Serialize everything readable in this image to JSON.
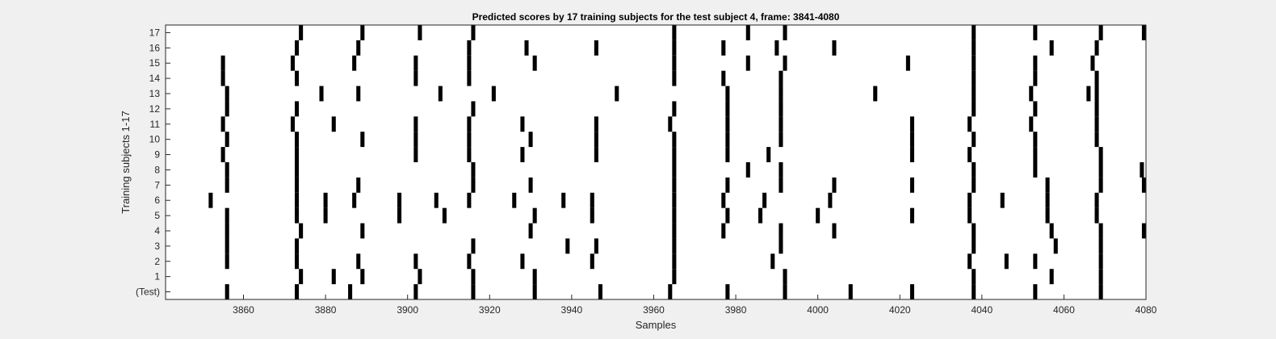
{
  "chart_data": {
    "type": "raster",
    "title": "Predicted scores by 17 training subjects for the test subject 4, frame: 3841-4080",
    "xlabel": "Samples",
    "ylabel": "Training subjects 1-17",
    "xlim": [
      3841,
      4080
    ],
    "x_ticks": [
      3860,
      3880,
      3900,
      3920,
      3940,
      3960,
      3980,
      4000,
      4020,
      4040,
      4060,
      4080
    ],
    "y_tick_labels": [
      "(Test)",
      "1",
      "2",
      "3",
      "4",
      "5",
      "6",
      "7",
      "8",
      "9",
      "10",
      "11",
      "12",
      "13",
      "14",
      "15",
      "16",
      "17"
    ],
    "grid": false,
    "legend": "none",
    "colors": {
      "background": "#f0f0f0",
      "axes": "#ffffff",
      "mark": "#000000",
      "text": "#262626"
    },
    "rows": [
      {
        "label": "(Test)",
        "x": [
          3856,
          3873,
          3886,
          3902,
          3916,
          3931,
          3947,
          3964,
          3978,
          3992,
          4008,
          4023,
          4038,
          4053,
          4069
        ]
      },
      {
        "label": "1",
        "x": [
          3874,
          3882,
          3889,
          3903,
          3916,
          3931,
          3965,
          3992,
          4038,
          4057,
          4069
        ]
      },
      {
        "label": "2",
        "x": [
          3856,
          3873,
          3888,
          3902,
          3915,
          3928,
          3945,
          3965,
          3989,
          4037,
          4046,
          4053,
          4069
        ]
      },
      {
        "label": "3",
        "x": [
          3856,
          3873,
          3916,
          3939,
          3946,
          3965,
          3991,
          4038,
          4058,
          4069
        ]
      },
      {
        "label": "4",
        "x": [
          3856,
          3874,
          3889,
          3930,
          3965,
          3977,
          3991,
          4004,
          4038,
          4057,
          4069,
          4080
        ]
      },
      {
        "label": "5",
        "x": [
          3856,
          3873,
          3880,
          3898,
          3909,
          3931,
          3945,
          3965,
          3978,
          3986,
          4000,
          4023,
          4037,
          4056,
          4068
        ]
      },
      {
        "label": "6",
        "x": [
          3852,
          3873,
          3880,
          3887,
          3898,
          3907,
          3915,
          3926,
          3938,
          3945,
          3965,
          3977,
          3987,
          4003,
          4037,
          4045,
          4056,
          4068
        ]
      },
      {
        "label": "7",
        "x": [
          3856,
          3873,
          3888,
          3916,
          3930,
          3965,
          3978,
          3991,
          4004,
          4023,
          4038,
          4056,
          4069,
          4080
        ]
      },
      {
        "label": "8",
        "x": [
          3856,
          3873,
          3916,
          3965,
          3983,
          3991,
          4038,
          4053,
          4069,
          4079
        ]
      },
      {
        "label": "9",
        "x": [
          3855,
          3873,
          3902,
          3915,
          3928,
          3946,
          3965,
          3978,
          3988,
          4023,
          4037,
          4053,
          4069
        ]
      },
      {
        "label": "10",
        "x": [
          3856,
          3873,
          3889,
          3902,
          3915,
          3930,
          3946,
          3965,
          3978,
          3991,
          4023,
          4038,
          4053,
          4068
        ]
      },
      {
        "label": "11",
        "x": [
          3855,
          3872,
          3882,
          3902,
          3915,
          3928,
          3946,
          3964,
          3978,
          3991,
          4023,
          4037,
          4052,
          4068
        ]
      },
      {
        "label": "12",
        "x": [
          3856,
          3873,
          3916,
          3965,
          3978,
          3991,
          4038,
          4053,
          4068
        ]
      },
      {
        "label": "13",
        "x": [
          3856,
          3879,
          3888,
          3908,
          3921,
          3951,
          3978,
          3991,
          4014,
          4038,
          4052,
          4066,
          4068
        ]
      },
      {
        "label": "14",
        "x": [
          3855,
          3873,
          3902,
          3915,
          3965,
          3977,
          3991,
          4038,
          4053,
          4068
        ]
      },
      {
        "label": "15",
        "x": [
          3855,
          3872,
          3887,
          3902,
          3915,
          3931,
          3965,
          3983,
          3992,
          4022,
          4038,
          4053,
          4067
        ]
      },
      {
        "label": "16",
        "x": [
          3873,
          3888,
          3915,
          3929,
          3946,
          3965,
          3977,
          3990,
          4004,
          4038,
          4057,
          4068
        ]
      },
      {
        "label": "17",
        "x": [
          3874,
          3889,
          3903,
          3916,
          3965,
          3983,
          3992,
          4038,
          4053,
          4069,
          4080
        ]
      }
    ]
  }
}
